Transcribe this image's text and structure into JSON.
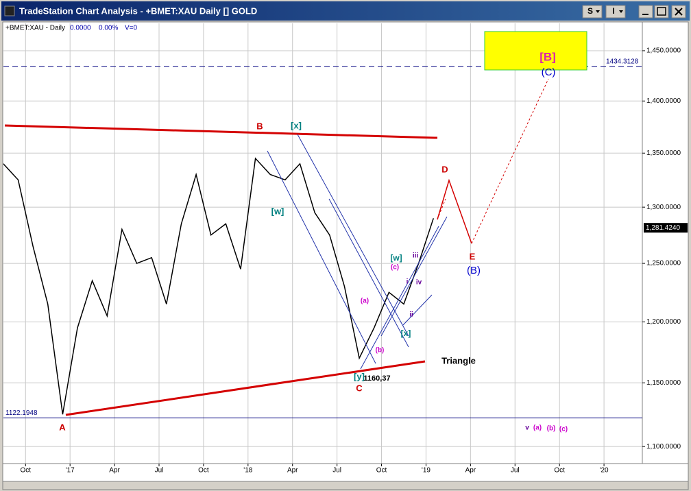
{
  "window_title": "TradeStation Chart Analysis - +BMET:XAU Daily [] GOLD",
  "toolbar": {
    "buttons": [
      "S",
      "I"
    ]
  },
  "status_line": {
    "symbol": "+BMET:XAU - Daily",
    "last": "0.0000",
    "change": "0.00%",
    "volume": "V=0"
  },
  "chart_data": {
    "type": "line",
    "log_scale": true,
    "grid": true,
    "color": "#000000",
    "x": [
      "2016-08",
      "2016-09",
      "2016-10",
      "2016-11",
      "2016-12",
      "2017-01",
      "2017-02",
      "2017-03",
      "2017-04",
      "2017-05",
      "2017-06",
      "2017-07",
      "2017-08",
      "2017-09",
      "2017-10",
      "2017-11",
      "2017-12",
      "2018-01",
      "2018-02",
      "2018-03",
      "2018-04",
      "2018-05",
      "2018-06",
      "2018-07",
      "2018-08",
      "2018-09",
      "2018-10",
      "2018-11",
      "2018-12",
      "2019-01"
    ],
    "values": [
      1340,
      1325,
      1265,
      1215,
      1125,
      1195,
      1235,
      1205,
      1280,
      1250,
      1255,
      1215,
      1285,
      1330,
      1275,
      1285,
      1245,
      1345,
      1330,
      1325,
      1340,
      1295,
      1275,
      1230,
      1170,
      1195,
      1225,
      1215,
      1250,
      1290
    ],
    "xlim": [
      "2016-08",
      "2020-04"
    ],
    "xticks": [
      {
        "value": "2016-10",
        "label": "Oct"
      },
      {
        "value": "2017-01",
        "label": "'17"
      },
      {
        "value": "2017-04",
        "label": "Apr"
      },
      {
        "value": "2017-07",
        "label": "Jul"
      },
      {
        "value": "2017-10",
        "label": "Oct"
      },
      {
        "value": "2018-01",
        "label": "'18"
      },
      {
        "value": "2018-04",
        "label": "Apr"
      },
      {
        "value": "2018-07",
        "label": "Jul"
      },
      {
        "value": "2018-10",
        "label": "Oct"
      },
      {
        "value": "2019-01",
        "label": "'19"
      },
      {
        "value": "2019-04",
        "label": "Apr"
      },
      {
        "value": "2019-07",
        "label": "Jul"
      },
      {
        "value": "2019-10",
        "label": "Oct"
      },
      {
        "value": "2020-01",
        "label": "'20"
      }
    ],
    "ylim": [
      1087,
      1478
    ],
    "yticks": [
      {
        "value": 1100,
        "label": "1,100.0000"
      },
      {
        "value": 1150,
        "label": "1,150.0000"
      },
      {
        "value": 1200,
        "label": "1,200.0000"
      },
      {
        "value": 1250,
        "label": "1,250.0000"
      },
      {
        "value": 1300,
        "label": "1,300.0000"
      },
      {
        "value": 1350,
        "label": "1,350.0000"
      },
      {
        "value": 1400,
        "label": "1,400.0000"
      },
      {
        "value": 1450,
        "label": "1,450.0000"
      }
    ],
    "horizontal_lines": [
      1434.3128,
      1122.1948
    ],
    "last_price": {
      "value": 1281.424,
      "label": "1,281.4240"
    },
    "annotations": [
      "A",
      "B",
      "[x]",
      "[w]",
      "C",
      "[y]",
      "1160,37",
      "(a)",
      "(b)",
      "(c)",
      "[w]",
      "[x]",
      "i",
      "ii",
      "iii",
      "iv",
      "D",
      "E",
      "(B)",
      "Triangle",
      "[B]",
      "(C)",
      "v",
      "(a)",
      "(b)",
      "(c)"
    ]
  }
}
